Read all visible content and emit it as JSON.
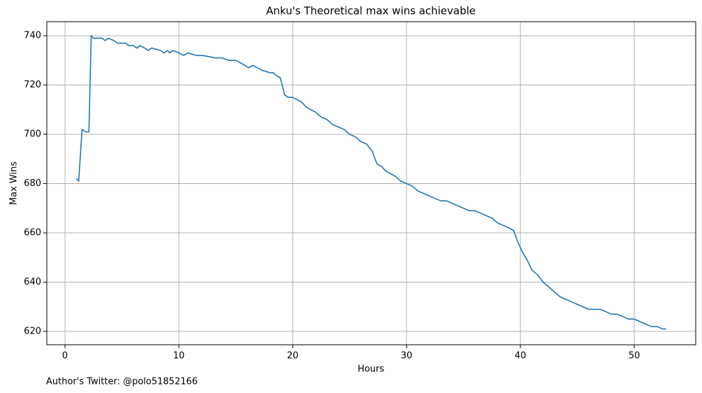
{
  "chart_data": {
    "type": "line",
    "title": "Anku's Theoretical max wins achievable",
    "x_label": "Hours",
    "y_label": "Max Wins",
    "footnote": "Author's Twitter: @polo51852166",
    "x": [
      1.0,
      1.2,
      1.5,
      1.8,
      2.1,
      2.3,
      2.5,
      3.3,
      3.5,
      3.8,
      4.3,
      4.6,
      5.3,
      5.6,
      6.0,
      6.3,
      6.6,
      7.0,
      7.3,
      7.6,
      8.4,
      8.7,
      9.0,
      9.2,
      9.5,
      10.0,
      10.4,
      10.8,
      11.5,
      11.8,
      12.1,
      13.2,
      13.8,
      14.4,
      15.0,
      15.4,
      15.8,
      16.1,
      16.5,
      16.9,
      17.3,
      18.0,
      18.3,
      18.5,
      18.9,
      19.3,
      19.6,
      20.0,
      20.4,
      20.8,
      21.2,
      21.6,
      22.0,
      22.5,
      23.0,
      23.5,
      24.0,
      24.5,
      25.0,
      25.5,
      26.0,
      26.5,
      27.0,
      27.4,
      27.8,
      28.2,
      28.6,
      29.0,
      29.5,
      30.0,
      30.5,
      31.0,
      31.5,
      32.0,
      32.5,
      33.0,
      33.5,
      34.0,
      34.5,
      35.0,
      35.5,
      36.0,
      36.5,
      37.0,
      37.5,
      38.0,
      38.5,
      39.0,
      39.4,
      39.8,
      40.2,
      40.6,
      41.0,
      41.5,
      42.0,
      42.5,
      43.0,
      43.5,
      44.0,
      44.5,
      45.0,
      45.5,
      46.0,
      46.5,
      47.0,
      47.5,
      48.0,
      48.5,
      49.0,
      49.5,
      50.0,
      50.5,
      51.0,
      51.5,
      52.0,
      52.5,
      52.8
    ],
    "series": [
      {
        "color": "#1f77b4",
        "values": [
          682,
          681,
          702,
          701,
          701,
          740,
          739,
          739,
          738,
          739,
          738,
          737,
          737,
          736,
          736,
          735,
          736,
          735,
          734,
          735,
          734,
          733,
          734,
          733,
          734,
          733,
          732,
          733,
          732,
          732,
          732,
          731,
          731,
          730,
          730,
          729,
          728,
          727,
          728,
          727,
          726,
          725,
          725,
          724,
          723,
          716,
          715,
          715,
          714,
          713,
          711,
          710,
          709,
          707,
          706,
          704,
          703,
          702,
          700,
          699,
          697,
          696,
          693,
          688,
          687,
          685,
          684,
          683,
          681,
          680,
          679,
          677,
          676,
          675,
          674,
          673,
          673,
          672,
          671,
          670,
          669,
          669,
          668,
          667,
          666,
          664,
          663,
          662,
          661,
          656,
          652,
          649,
          645,
          643,
          640,
          638,
          636,
          634,
          633,
          632,
          631,
          630,
          629,
          629,
          629,
          628,
          627,
          627,
          626,
          625,
          625,
          624,
          623,
          622,
          622,
          621,
          621
        ]
      }
    ],
    "xlim": [
      -1.6,
      55.4
    ],
    "ylim": [
      614.6,
      745.7
    ],
    "xticks": [
      0,
      10,
      20,
      30,
      40,
      50
    ],
    "yticks": [
      620,
      640,
      660,
      680,
      700,
      720,
      740
    ],
    "grid": true
  }
}
